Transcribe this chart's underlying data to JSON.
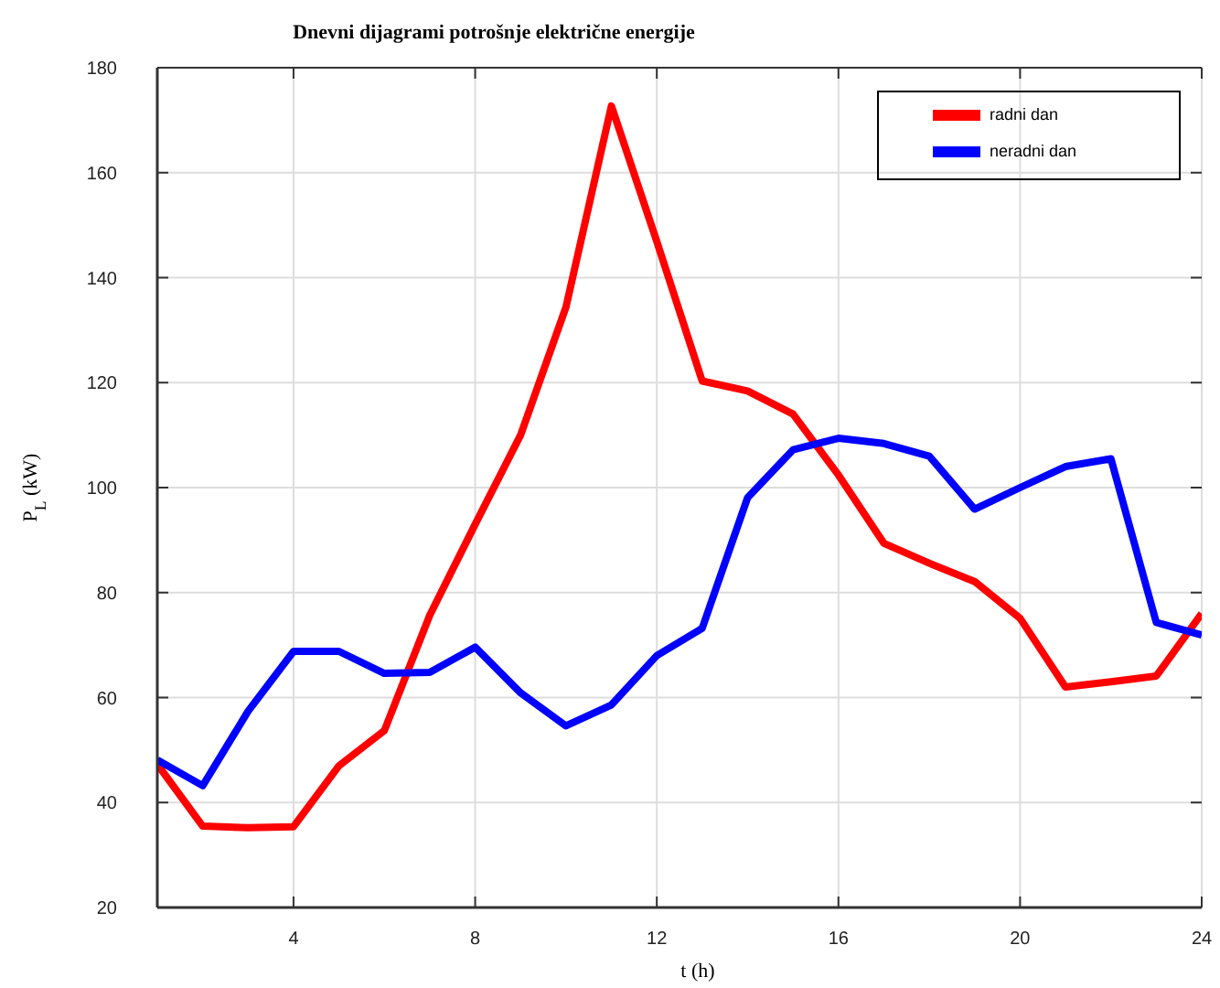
{
  "chart_data": {
    "type": "line",
    "title": "Dnevni dijagrami potrošnje električne energije",
    "xlabel": "t (h)",
    "ylabel": "P$_{L}$ (kW)",
    "x": [
      1,
      2,
      3,
      4,
      5,
      6,
      7,
      8,
      9,
      10,
      11,
      12,
      13,
      14,
      15,
      16,
      17,
      18,
      19,
      20,
      21,
      22,
      23,
      24
    ],
    "series": [
      {
        "name": "radni dan",
        "color": "#ff0000",
        "values": [
          47.3,
          35.5,
          35.2,
          35.4,
          47,
          53.7,
          75.7,
          93,
          110,
          134.4,
          172.7,
          146.9,
          120.3,
          118.4,
          114,
          102.4,
          89.4,
          85.6,
          82.1,
          75.1,
          62,
          63,
          64.1,
          76
        ]
      },
      {
        "name": "neradni dan",
        "color": "#0000ff",
        "values": [
          48.1,
          43.2,
          57.4,
          68.8,
          68.8,
          64.6,
          64.8,
          69.6,
          60.9,
          54.6,
          58.6,
          68,
          73.2,
          98.1,
          107.2,
          109.4,
          108.4,
          106,
          95.9,
          100,
          104,
          105.5,
          74.3,
          71.9
        ]
      }
    ],
    "xlim": [
      1,
      24
    ],
    "xticks": [
      4,
      8,
      12,
      16,
      20,
      24
    ],
    "ylim": [
      20,
      180
    ],
    "yticks": [
      20,
      40,
      60,
      80,
      100,
      120,
      140,
      160,
      180
    ],
    "grid": true,
    "legend": "top right",
    "marker": "none",
    "line_style": "solid"
  }
}
